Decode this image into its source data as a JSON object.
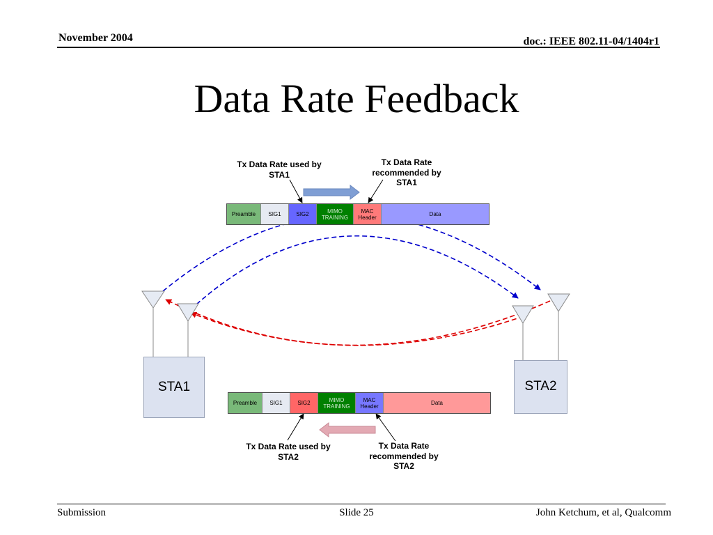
{
  "header": {
    "date": "November 2004",
    "doc": "doc.: IEEE 802.11-04/1404r1"
  },
  "title": "Data Rate Feedback",
  "frames": {
    "top": {
      "segments": [
        {
          "label": "Preamble",
          "color": "#79b979"
        },
        {
          "label": "SIG1",
          "color": "#e6eaf2"
        },
        {
          "label": "SIG2",
          "color": "#6666ff"
        },
        {
          "label": "MIMO TRAINING",
          "color": "#008000"
        },
        {
          "label": "MAC Header",
          "color": "#ff7a7a"
        },
        {
          "label": "Data",
          "color": "#9999ff"
        }
      ]
    },
    "bottom": {
      "segments": [
        {
          "label": "Preamble",
          "color": "#79b979"
        },
        {
          "label": "SIG1",
          "color": "#e6eaf2"
        },
        {
          "label": "SIG2",
          "color": "#ff6666"
        },
        {
          "label": "MIMO TRAINING",
          "color": "#008000"
        },
        {
          "label": "MAC Header",
          "color": "#7777ff"
        },
        {
          "label": "Data",
          "color": "#ff9999"
        }
      ]
    }
  },
  "callouts": {
    "top_left": "Tx Data Rate used by STA1",
    "top_right": "Tx Data Rate recommended by STA1",
    "bottom_left": "Tx Data Rate used by STA2",
    "bottom_right": "Tx Data Rate recommended by STA2"
  },
  "stations": {
    "sta1": "STA1",
    "sta2": "STA2"
  },
  "colors": {
    "sta1_to_sta2_link": "#0000cc",
    "sta2_to_sta1_link": "#dd0000",
    "top_arrow": "#7f9ed4",
    "bottom_arrow": "#e3a9b3",
    "station_fill": "#dce2f0",
    "antenna_fill": "#e6ebf4"
  },
  "icons": [
    "antenna-icon",
    "right-arrow-icon",
    "left-arrow-icon"
  ],
  "footer": {
    "left": "Submission",
    "center": "Slide 25",
    "right": "John Ketchum, et al, Qualcomm"
  }
}
